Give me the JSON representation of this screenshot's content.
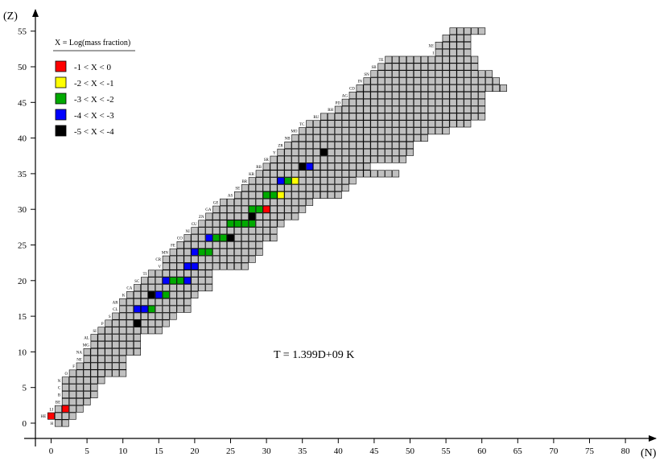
{
  "chart_data": {
    "type": "heatmap",
    "xlabel": "(N)",
    "ylabel": "(Z)",
    "x_ticks": [
      0,
      5,
      10,
      15,
      20,
      25,
      30,
      35,
      40,
      45,
      50,
      55,
      60,
      65,
      70,
      75,
      80
    ],
    "y_ticks": [
      0,
      5,
      10,
      15,
      20,
      25,
      30,
      35,
      40,
      45,
      50,
      55
    ],
    "xlim": [
      -2,
      82
    ],
    "ylim": [
      -1.5,
      56.5
    ],
    "annotation": "T = 1.399D+09 K",
    "legend": {
      "title": "X = Log(mass fraction)",
      "placement": "top-left",
      "entries": [
        {
          "label": "-1 < X < 0",
          "color": "#ff0000"
        },
        {
          "label": "-2 < X < -1",
          "color": "#ffff00"
        },
        {
          "label": "-3 < X < -2",
          "color": "#00aa00"
        },
        {
          "label": "-4 < X < -3",
          "color": "#0000ff"
        },
        {
          "label": "-5 < X < -4",
          "color": "#000000"
        }
      ]
    },
    "cell_colors": {
      "base": "#c0c0c0",
      "edge": "#000000"
    },
    "rows": [
      {
        "z": 0,
        "n": [
          1,
          2
        ]
      },
      {
        "z": 1,
        "n": [
          0,
          3
        ]
      },
      {
        "z": 2,
        "n": [
          1,
          4
        ]
      },
      {
        "z": 3,
        "n": [
          2,
          5
        ]
      },
      {
        "z": 4,
        "n": [
          2,
          6
        ]
      },
      {
        "z": 5,
        "n": [
          2,
          6
        ]
      },
      {
        "z": 6,
        "n": [
          2,
          7
        ]
      },
      {
        "z": 7,
        "n": [
          3,
          10
        ]
      },
      {
        "z": 8,
        "n": [
          4,
          10
        ]
      },
      {
        "z": 9,
        "n": [
          5,
          10
        ]
      },
      {
        "z": 10,
        "n": [
          5,
          12
        ]
      },
      {
        "z": 11,
        "n": [
          6,
          12
        ]
      },
      {
        "z": 12,
        "n": [
          6,
          12
        ]
      },
      {
        "z": 13,
        "n": [
          7,
          15
        ]
      },
      {
        "z": 14,
        "n": [
          8,
          16
        ]
      },
      {
        "z": 15,
        "n": [
          9,
          17
        ]
      },
      {
        "z": 16,
        "n": [
          10,
          19
        ]
      },
      {
        "z": 17,
        "n": [
          10,
          19
        ]
      },
      {
        "z": 18,
        "n": [
          11,
          20
        ]
      },
      {
        "z": 19,
        "n": [
          12,
          22
        ]
      },
      {
        "z": 20,
        "n": [
          13,
          22
        ]
      },
      {
        "z": 21,
        "n": [
          14,
          22
        ]
      },
      {
        "z": 22,
        "n": [
          16,
          27
        ]
      },
      {
        "z": 23,
        "n": [
          16,
          28
        ]
      },
      {
        "z": 24,
        "n": [
          17,
          29
        ]
      },
      {
        "z": 25,
        "n": [
          18,
          29
        ]
      },
      {
        "z": 26,
        "n": [
          19,
          31
        ]
      },
      {
        "z": 27,
        "n": [
          20,
          31
        ]
      },
      {
        "z": 28,
        "n": [
          21,
          32
        ]
      },
      {
        "z": 29,
        "n": [
          22,
          34
        ]
      },
      {
        "z": 30,
        "n": [
          23,
          35
        ]
      },
      {
        "z": 31,
        "n": [
          24,
          36
        ]
      },
      {
        "z": 32,
        "n": [
          26,
          40
        ]
      },
      {
        "z": 33,
        "n": [
          27,
          41
        ]
      },
      {
        "z": 34,
        "n": [
          28,
          42
        ]
      },
      {
        "z": 35,
        "n": [
          29,
          48
        ]
      },
      {
        "z": 36,
        "n": [
          30,
          44
        ]
      },
      {
        "z": 37,
        "n": [
          31,
          49
        ]
      },
      {
        "z": 38,
        "n": [
          32,
          50
        ]
      },
      {
        "z": 39,
        "n": [
          33,
          50
        ]
      },
      {
        "z": 40,
        "n": [
          34,
          52
        ]
      },
      {
        "z": 41,
        "n": [
          35,
          55
        ]
      },
      {
        "z": 42,
        "n": [
          36,
          58
        ]
      },
      {
        "z": 43,
        "n": [
          38,
          60
        ]
      },
      {
        "z": 44,
        "n": [
          40,
          60
        ]
      },
      {
        "z": 45,
        "n": [
          41,
          60
        ]
      },
      {
        "z": 46,
        "n": [
          42,
          60
        ]
      },
      {
        "z": 47,
        "n": [
          43,
          63
        ]
      },
      {
        "z": 48,
        "n": [
          44,
          62
        ]
      },
      {
        "z": 49,
        "n": [
          45,
          61
        ]
      },
      {
        "z": 50,
        "n": [
          46,
          59
        ]
      },
      {
        "z": 51,
        "n": [
          47,
          59
        ]
      },
      {
        "z": 52,
        "n": [
          54,
          58
        ]
      },
      {
        "z": 53,
        "n": [
          54,
          58
        ]
      },
      {
        "z": 54,
        "n": [
          55,
          58
        ]
      },
      {
        "z": 55,
        "n": [
          56,
          60
        ]
      }
    ],
    "colored_cells": [
      {
        "n": 0,
        "z": 1,
        "color": "#ff0000"
      },
      {
        "n": 2,
        "z": 2,
        "color": "#ff0000"
      },
      {
        "n": 12,
        "z": 14,
        "color": "#000000"
      },
      {
        "n": 12,
        "z": 16,
        "color": "#0000ff"
      },
      {
        "n": 13,
        "z": 16,
        "color": "#0000ff"
      },
      {
        "n": 14,
        "z": 16,
        "color": "#00aa00"
      },
      {
        "n": 14,
        "z": 18,
        "color": "#000000"
      },
      {
        "n": 15,
        "z": 18,
        "color": "#0000ff"
      },
      {
        "n": 16,
        "z": 18,
        "color": "#00aa00"
      },
      {
        "n": 16,
        "z": 20,
        "color": "#0000ff"
      },
      {
        "n": 17,
        "z": 20,
        "color": "#00aa00"
      },
      {
        "n": 18,
        "z": 20,
        "color": "#00aa00"
      },
      {
        "n": 19,
        "z": 20,
        "color": "#0000ff"
      },
      {
        "n": 19,
        "z": 22,
        "color": "#0000ff"
      },
      {
        "n": 20,
        "z": 22,
        "color": "#0000ff"
      },
      {
        "n": 20,
        "z": 24,
        "color": "#0000ff"
      },
      {
        "n": 21,
        "z": 24,
        "color": "#00aa00"
      },
      {
        "n": 22,
        "z": 24,
        "color": "#00aa00"
      },
      {
        "n": 22,
        "z": 26,
        "color": "#0000ff"
      },
      {
        "n": 23,
        "z": 26,
        "color": "#00aa00"
      },
      {
        "n": 24,
        "z": 26,
        "color": "#00aa00"
      },
      {
        "n": 25,
        "z": 26,
        "color": "#000000"
      },
      {
        "n": 25,
        "z": 28,
        "color": "#00aa00"
      },
      {
        "n": 26,
        "z": 28,
        "color": "#00aa00"
      },
      {
        "n": 27,
        "z": 28,
        "color": "#00aa00"
      },
      {
        "n": 28,
        "z": 28,
        "color": "#00aa00"
      },
      {
        "n": 28,
        "z": 29,
        "color": "#000000"
      },
      {
        "n": 28,
        "z": 30,
        "color": "#00aa00"
      },
      {
        "n": 29,
        "z": 30,
        "color": "#00aa00"
      },
      {
        "n": 30,
        "z": 30,
        "color": "#ff0000"
      },
      {
        "n": 30,
        "z": 32,
        "color": "#00aa00"
      },
      {
        "n": 31,
        "z": 32,
        "color": "#00aa00"
      },
      {
        "n": 32,
        "z": 32,
        "color": "#ffff00"
      },
      {
        "n": 32,
        "z": 34,
        "color": "#0000ff"
      },
      {
        "n": 33,
        "z": 34,
        "color": "#00aa00"
      },
      {
        "n": 34,
        "z": 34,
        "color": "#ffff00"
      },
      {
        "n": 35,
        "z": 36,
        "color": "#000000"
      },
      {
        "n": 36,
        "z": 36,
        "color": "#0000ff"
      },
      {
        "n": 38,
        "z": 38,
        "color": "#000000"
      }
    ],
    "element_labels": [
      {
        "text": "H",
        "z": 0
      },
      {
        "text": "HE",
        "z": 1
      },
      {
        "text": "LI",
        "z": 2
      },
      {
        "text": "BE",
        "z": 3
      },
      {
        "text": "B",
        "z": 4
      },
      {
        "text": "C",
        "z": 5
      },
      {
        "text": "N",
        "z": 6
      },
      {
        "text": "O",
        "z": 7
      },
      {
        "text": "F",
        "z": 8
      },
      {
        "text": "NE",
        "z": 9
      },
      {
        "text": "NA",
        "z": 10
      },
      {
        "text": "MG",
        "z": 11
      },
      {
        "text": "AL",
        "z": 12
      },
      {
        "text": "SI",
        "z": 13
      },
      {
        "text": "P",
        "z": 14
      },
      {
        "text": "S",
        "z": 15
      },
      {
        "text": "CL",
        "z": 16
      },
      {
        "text": "AR",
        "z": 17
      },
      {
        "text": "K",
        "z": 18
      },
      {
        "text": "CA",
        "z": 19
      },
      {
        "text": "SC",
        "z": 20
      },
      {
        "text": "TI",
        "z": 21
      },
      {
        "text": "V",
        "z": 22
      },
      {
        "text": "CR",
        "z": 23
      },
      {
        "text": "MN",
        "z": 24
      },
      {
        "text": "FE",
        "z": 25
      },
      {
        "text": "CO",
        "z": 26
      },
      {
        "text": "NI",
        "z": 27
      },
      {
        "text": "CU",
        "z": 28
      },
      {
        "text": "ZN",
        "z": 29
      },
      {
        "text": "GA",
        "z": 30
      },
      {
        "text": "GE",
        "z": 31
      },
      {
        "text": "AS",
        "z": 32
      },
      {
        "text": "SE",
        "z": 33
      },
      {
        "text": "BR",
        "z": 34
      },
      {
        "text": "KR",
        "z": 35
      },
      {
        "text": "RB",
        "z": 36
      },
      {
        "text": "SR",
        "z": 37
      },
      {
        "text": "Y",
        "z": 38
      },
      {
        "text": "ZR",
        "z": 39
      },
      {
        "text": "NB",
        "z": 40
      },
      {
        "text": "MO",
        "z": 41
      },
      {
        "text": "TC",
        "z": 42
      },
      {
        "text": "RU",
        "z": 43
      },
      {
        "text": "RH",
        "z": 44
      },
      {
        "text": "PD",
        "z": 45
      },
      {
        "text": "AG",
        "z": 46
      },
      {
        "text": "CD",
        "z": 47
      },
      {
        "text": "IN",
        "z": 48
      },
      {
        "text": "SN",
        "z": 49
      },
      {
        "text": "SB",
        "z": 50
      },
      {
        "text": "TE",
        "z": 51
      },
      {
        "text": "I",
        "z": 52
      },
      {
        "text": "XE",
        "z": 53
      }
    ]
  }
}
